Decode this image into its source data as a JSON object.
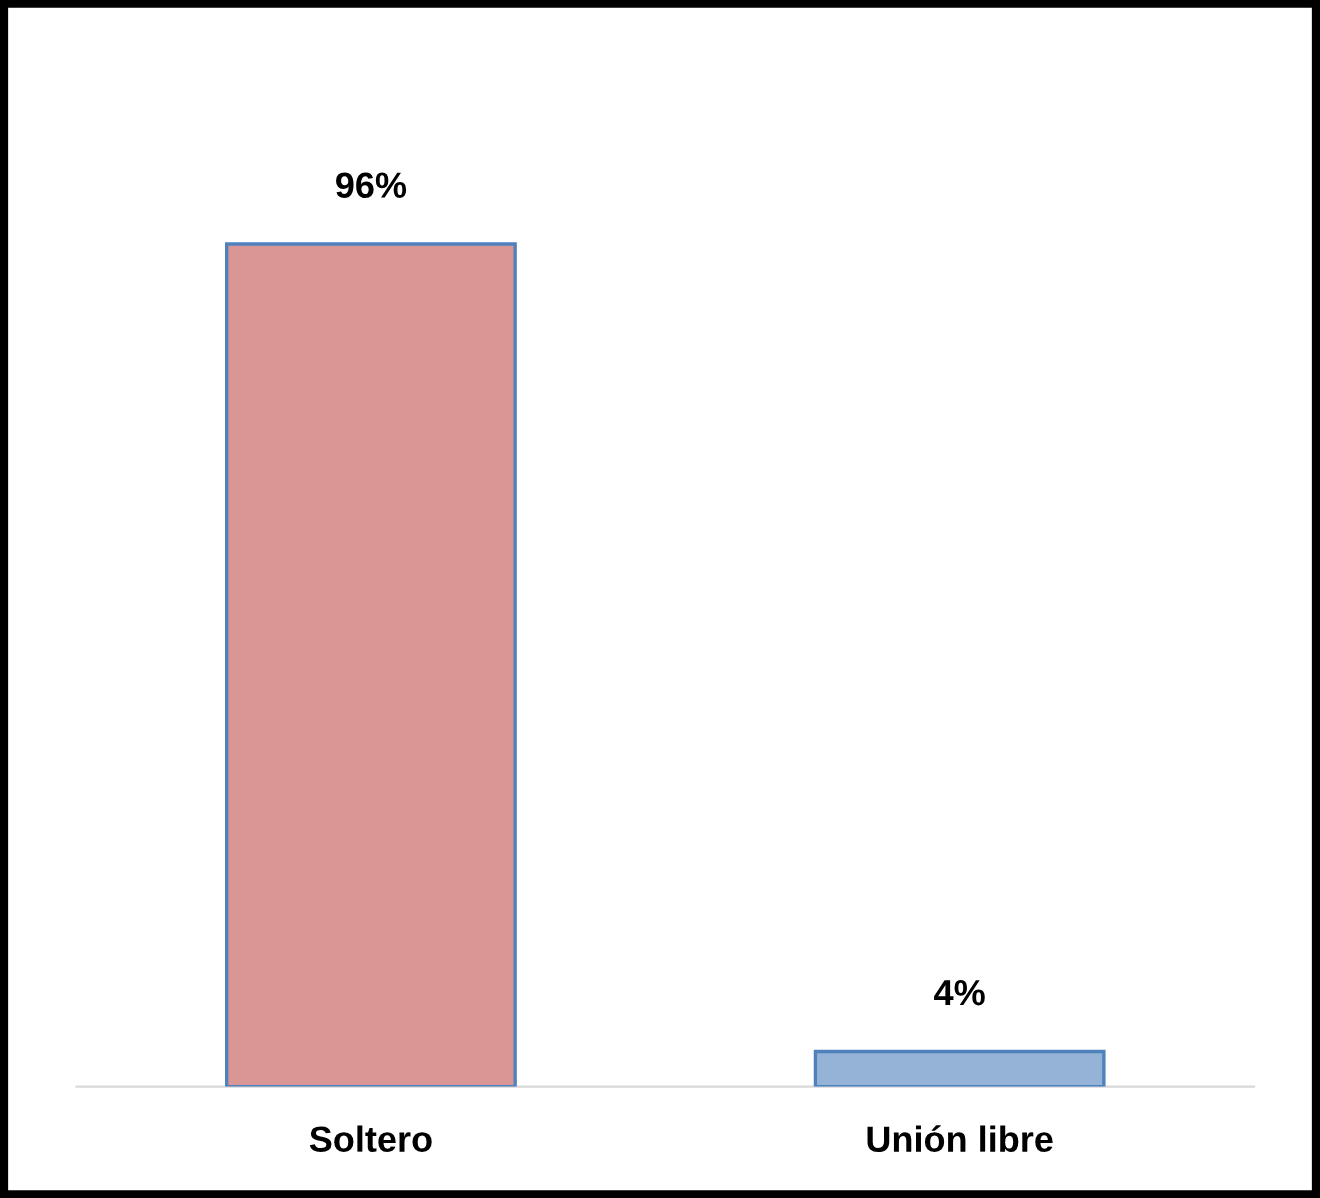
{
  "chart_data": {
    "type": "bar",
    "categories": [
      "Soltero",
      "Unión libre"
    ],
    "values": [
      96,
      4
    ],
    "colors": [
      "#d99694",
      "#95b3d7"
    ],
    "value_labels": [
      "96%",
      "4%"
    ]
  }
}
